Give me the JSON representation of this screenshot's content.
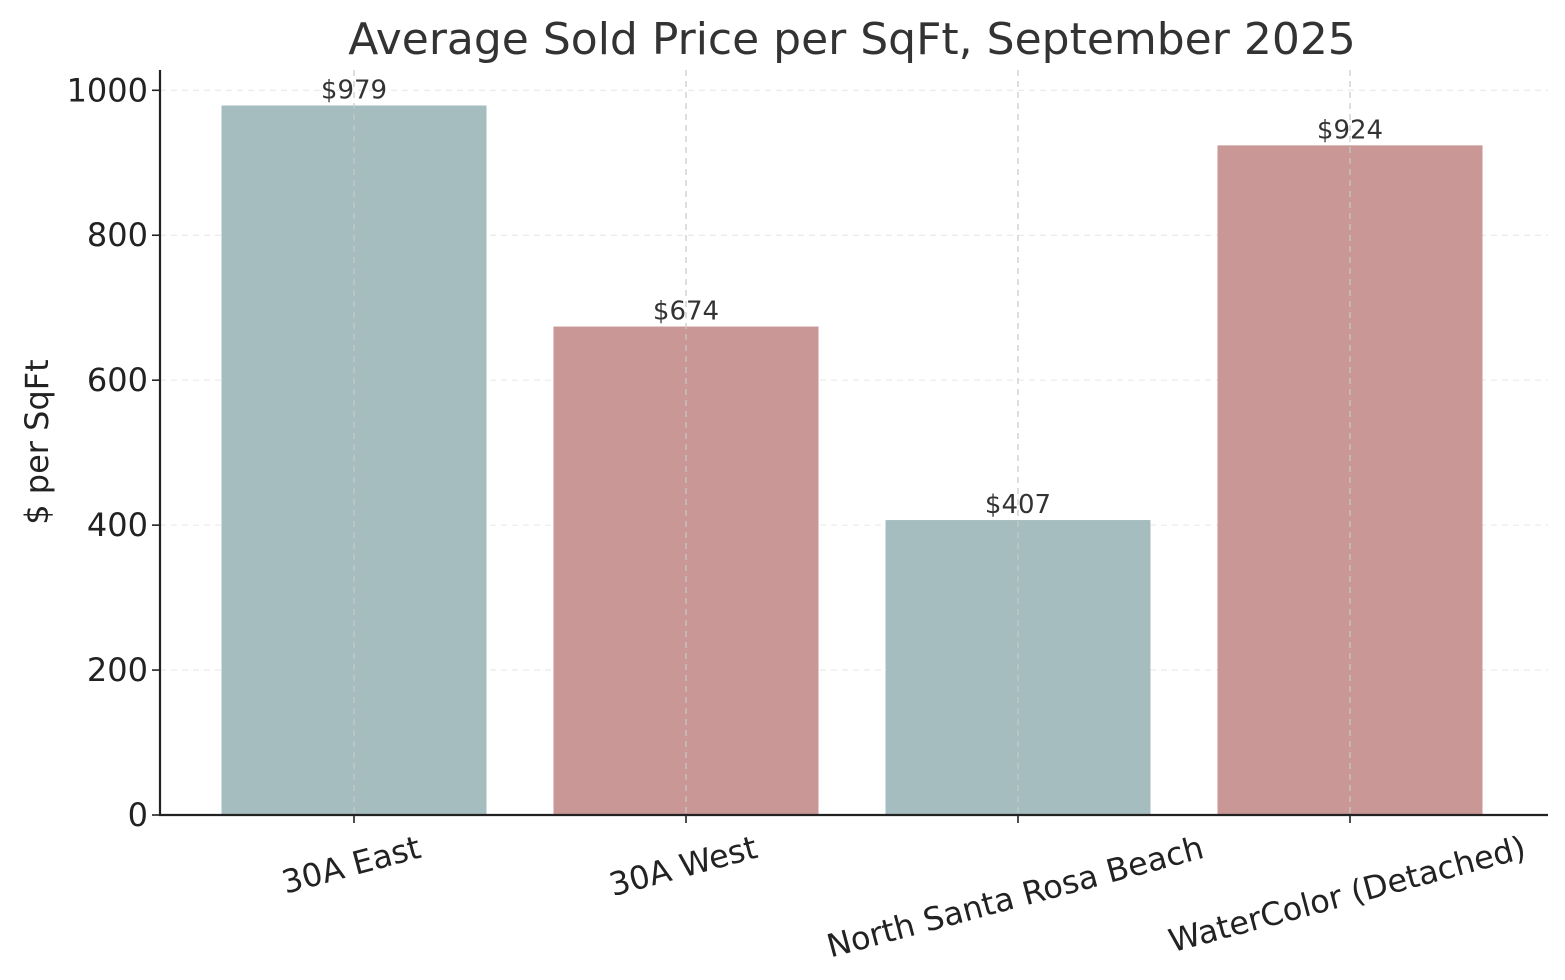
{
  "chart_data": {
    "type": "bar",
    "title": "Average Sold Price per SqFt, September 2025",
    "xlabel": "",
    "ylabel": "$ per SqFt",
    "categories": [
      "30A East",
      "30A West",
      "North Santa Rosa Beach",
      "WaterColor (Detached)"
    ],
    "values": [
      979,
      674,
      407,
      924
    ],
    "value_labels": [
      "$979",
      "$674",
      "$407",
      "$924"
    ],
    "bar_colors": [
      "#a5bdbf",
      "#c99795",
      "#a5bdbf",
      "#c99795"
    ],
    "yticks": [
      0,
      200,
      400,
      600,
      800,
      1000
    ],
    "ytick_labels": [
      "0",
      "200",
      "400",
      "600",
      "800",
      "1000"
    ],
    "ylim": [
      0,
      1028
    ],
    "grid": true,
    "legend": "none"
  }
}
